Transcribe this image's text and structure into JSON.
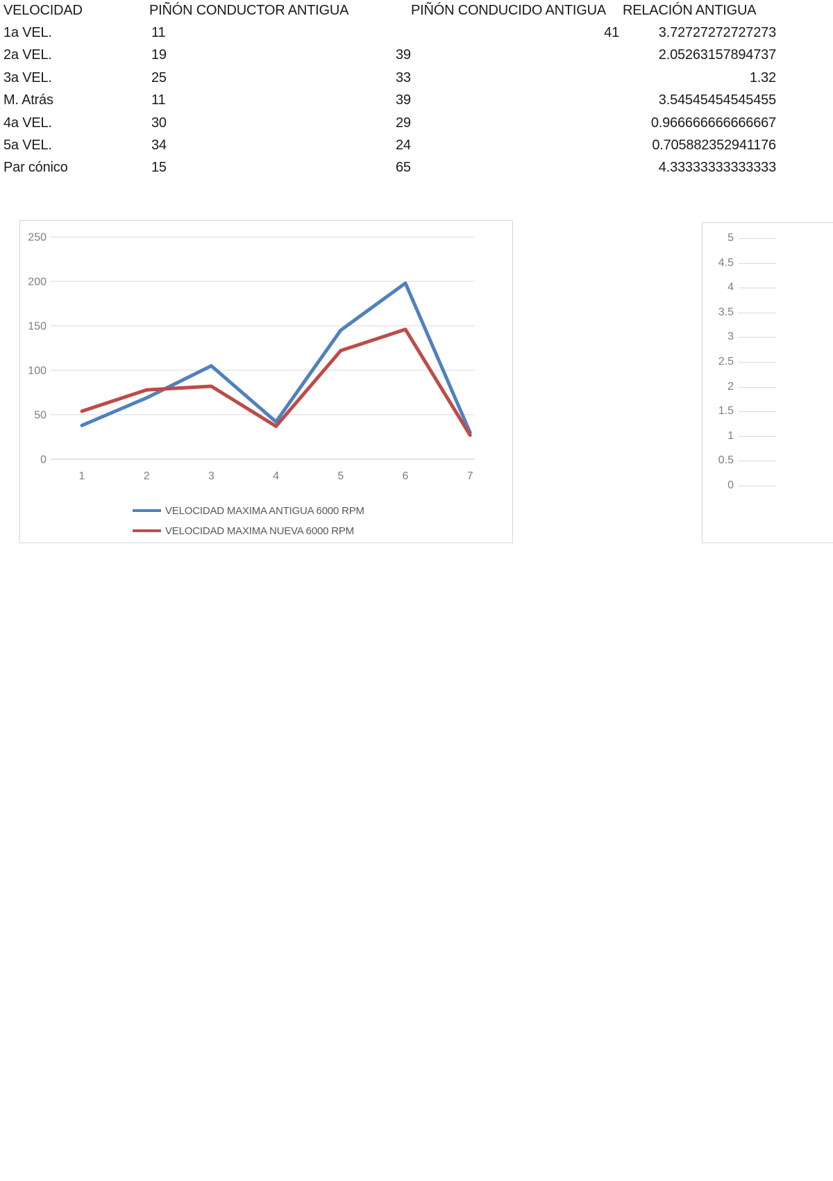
{
  "table": {
    "headers": [
      "VELOCIDAD",
      "PIÑÓN CONDUCTOR ANTIGUA",
      "PIÑÓN CONDUCIDO ANTIGUA",
      "RELACIÓN ANTIGUA"
    ],
    "rows": [
      {
        "velocidad": "1a VEL.",
        "conductor": "11",
        "conducido": "",
        "conducido_alt": "41",
        "relacion": "3.72727272727273"
      },
      {
        "velocidad": "2a VEL.",
        "conductor": "19",
        "conducido": "39",
        "conducido_alt": "",
        "relacion": "2.05263157894737"
      },
      {
        "velocidad": "3a VEL.",
        "conductor": "25",
        "conducido": "33",
        "conducido_alt": "",
        "relacion": "1.32"
      },
      {
        "velocidad": "M. Atrás",
        "conductor": "11",
        "conducido": "39",
        "conducido_alt": "",
        "relacion": "3.54545454545455"
      },
      {
        "velocidad": "4a VEL.",
        "conductor": "30",
        "conducido": "29",
        "conducido_alt": "",
        "relacion": "0.966666666666667"
      },
      {
        "velocidad": "5a VEL.",
        "conductor": "34",
        "conducido": "24",
        "conducido_alt": "",
        "relacion": "0.705882352941176"
      },
      {
        "velocidad": "Par cónico",
        "conductor": "15",
        "conducido": "65",
        "conducido_alt": "",
        "relacion": "4.33333333333333"
      }
    ]
  },
  "chart_data": [
    {
      "type": "line",
      "x": [
        1,
        2,
        3,
        4,
        5,
        6,
        7
      ],
      "xlabel": "",
      "ylabel": "",
      "title": "",
      "ylim": [
        0,
        250
      ],
      "yticks": [
        0,
        50,
        100,
        150,
        200,
        250
      ],
      "grid": true,
      "legend_position": "bottom",
      "series": [
        {
          "name": "VELOCIDAD MAXIMA ANTIGUA 6000 RPM",
          "color": "#4F81BD",
          "values": [
            38,
            69,
            105,
            42,
            145,
            198,
            30
          ]
        },
        {
          "name": "VELOCIDAD MAXIMA NUEVA 6000 RPM",
          "color": "#BE4B48",
          "values": [
            54,
            78,
            82,
            37,
            122,
            146,
            27
          ]
        }
      ]
    },
    {
      "type": "line",
      "x": [],
      "title": "",
      "ylim": [
        0,
        5
      ],
      "yticks": [
        5,
        4.5,
        4,
        3.5,
        3,
        2.5,
        2,
        1.5,
        1,
        0.5,
        0
      ],
      "grid": true,
      "series": []
    }
  ],
  "colors": {
    "series_antigua": "#4F81BD",
    "series_nueva": "#BE4B48",
    "gridline": "#d9d9d9",
    "axis_text": "#7f7f7f",
    "chart_border": "#d4d4d4"
  }
}
